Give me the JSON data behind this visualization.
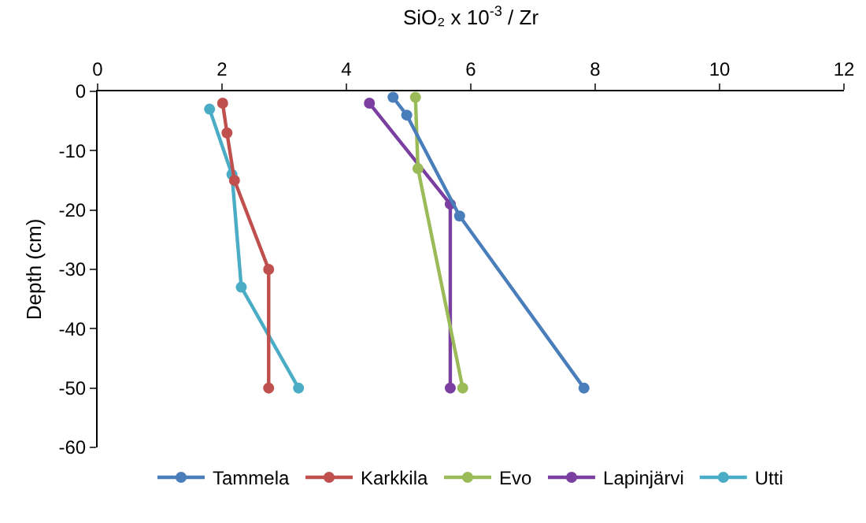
{
  "chart_data": {
    "type": "line",
    "xlabel": "SiO₂ x 10$^{-3}$ / Zr",
    "ylabel": "Depth (cm)",
    "xlim": [
      0,
      12
    ],
    "xticks": [
      0,
      2,
      4,
      6,
      8,
      10,
      12
    ],
    "ylim": [
      -60,
      0
    ],
    "yticks": [
      -60,
      -50,
      -40,
      -30,
      -20,
      -10,
      0
    ],
    "grid": false,
    "legend": "bottom",
    "marker": "circle",
    "line_style": "solid",
    "series": [
      {
        "name": "Tammela",
        "color": "#4a7ebb",
        "x": [
          4.75,
          4.97,
          5.82,
          7.82
        ],
        "values": [
          -1,
          -4,
          -21,
          -50
        ]
      },
      {
        "name": "Karkkila",
        "color": "#c0504d",
        "x": [
          2.01,
          2.08,
          2.2,
          2.75,
          2.75
        ],
        "values": [
          -2,
          -7,
          -15,
          -30,
          -50
        ]
      },
      {
        "name": "Evo",
        "color": "#9bbb59",
        "x": [
          5.11,
          5.15,
          5.87
        ],
        "values": [
          -1,
          -13,
          -50
        ]
      },
      {
        "name": "Lapinjärvi",
        "color": "#7a3fa0",
        "x": [
          4.37,
          5.67,
          5.67
        ],
        "values": [
          -2,
          -19,
          -50
        ]
      },
      {
        "name": "Utti",
        "color": "#4bacc6",
        "x": [
          1.8,
          2.16,
          2.31,
          3.23
        ],
        "values": [
          -3,
          -14,
          -33,
          -50
        ]
      }
    ]
  }
}
